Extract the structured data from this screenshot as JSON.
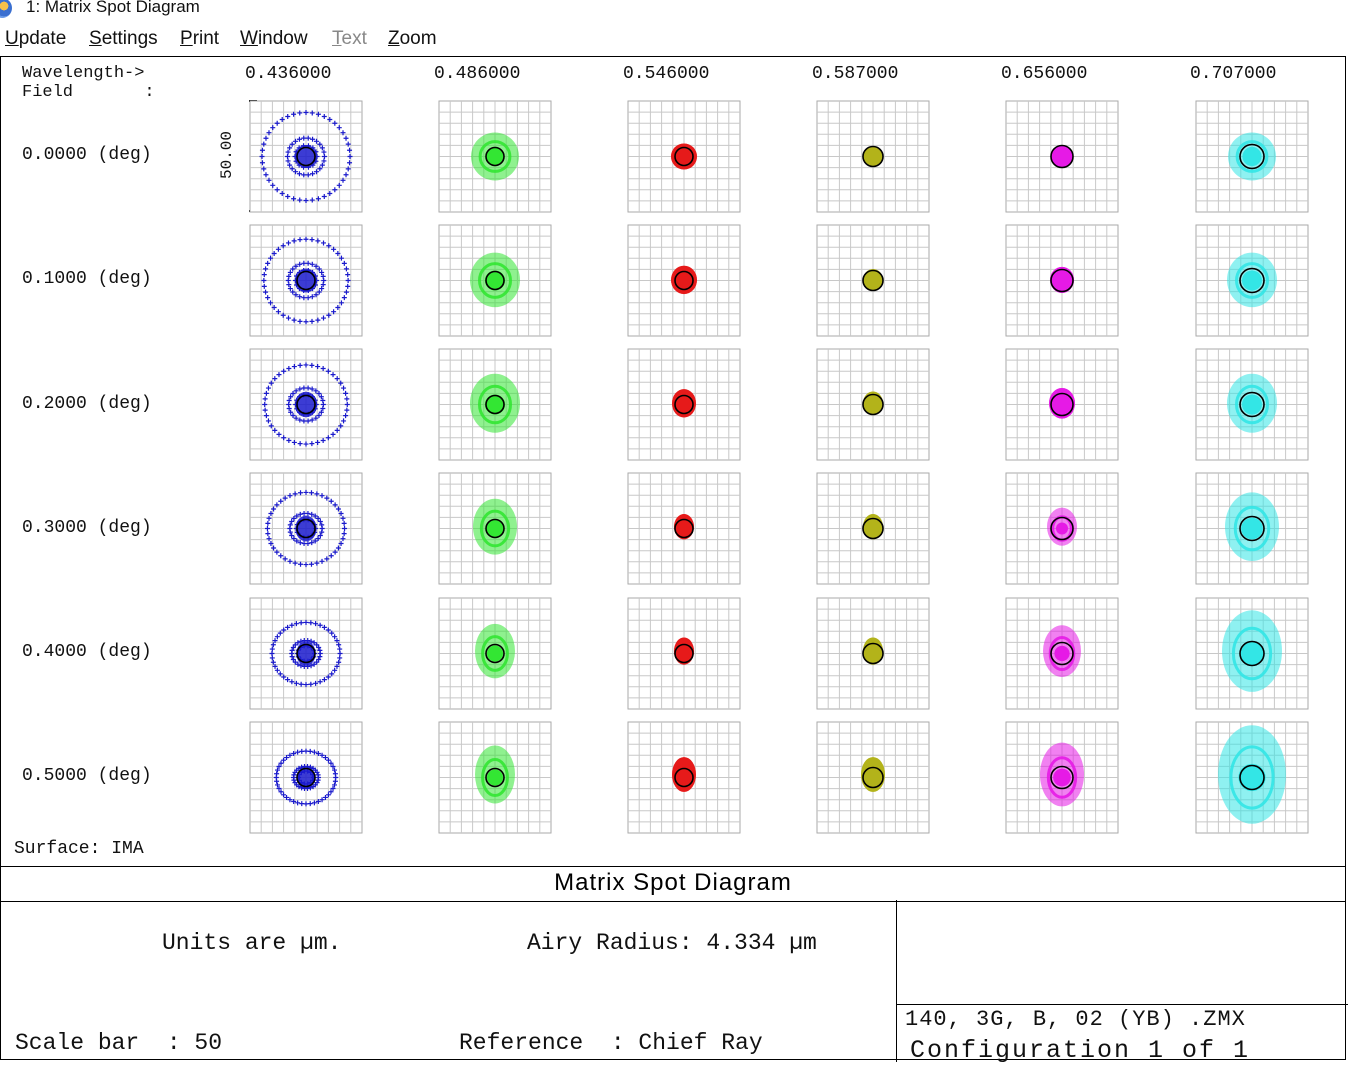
{
  "window": {
    "title": "1: Matrix Spot Diagram"
  },
  "menu": [
    {
      "label": "Update",
      "enabled": true
    },
    {
      "label": "Settings",
      "enabled": true
    },
    {
      "label": "Print",
      "enabled": true
    },
    {
      "label": "Window",
      "enabled": true
    },
    {
      "label": "Text",
      "enabled": false
    },
    {
      "label": "Zoom",
      "enabled": true
    }
  ],
  "header": {
    "wavelength_label": "Wavelength->",
    "field_label": "Field       :"
  },
  "wavelengths": [
    "0.436000",
    "0.486000",
    "0.546000",
    "0.587000",
    "0.656000",
    "0.707000"
  ],
  "fields": [
    "0.0000 (deg)",
    "0.1000 (deg)",
    "0.2000 (deg)",
    "0.3000 (deg)",
    "0.4000 (deg)",
    "0.5000 (deg)"
  ],
  "scale_bar_label": "50.00",
  "surface": "Surface: IMA",
  "colors": [
    "#1a1acc",
    "#33e633",
    "#e61a1a",
    "#b3b31a",
    "#e61ae6",
    "#33e6e6"
  ],
  "footer": {
    "title": "Matrix Spot Diagram",
    "units": "Units are µm.",
    "airy": "Airy Radius: 4.334 µm",
    "scale": "Scale bar  : 50",
    "reference": "Reference  : Chief Ray",
    "file": "140, 3G, B, 02 (YB) .ZMX",
    "config": "Configuration 1 of 1"
  }
}
